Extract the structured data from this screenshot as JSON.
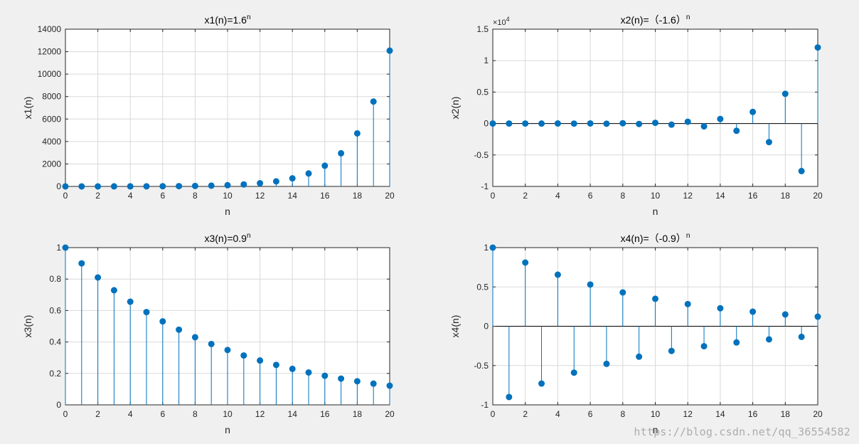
{
  "colors": {
    "figure_bg": "#f0f0f0",
    "axes_bg": "#ffffff",
    "stem": "#0072bd",
    "grid": "#d9d9d9",
    "axis": "#262626",
    "baseline": "#000000"
  },
  "watermark": "https://blog.csdn.net/qq_36554582",
  "chart_data": [
    {
      "type": "stem",
      "title": "x1(n)=1.6",
      "title_sup": "n",
      "xlabel": "n",
      "ylabel": "x1(n)",
      "xlim": [
        0,
        20
      ],
      "ylim": [
        0,
        14000
      ],
      "xticks": [
        "0",
        "2",
        "4",
        "6",
        "8",
        "10",
        "12",
        "14",
        "16",
        "18",
        "20"
      ],
      "yticks": [
        "0",
        "2000",
        "4000",
        "6000",
        "8000",
        "10000",
        "12000",
        "14000"
      ],
      "ytick_values": [
        0,
        2000,
        4000,
        6000,
        8000,
        10000,
        12000,
        14000
      ],
      "exponent_label": "",
      "grid": true,
      "baseline": false,
      "x": [
        0,
        1,
        2,
        3,
        4,
        5,
        6,
        7,
        8,
        9,
        10,
        11,
        12,
        13,
        14,
        15,
        16,
        17,
        18,
        19,
        20
      ],
      "values": [
        1,
        1.6,
        2.56,
        4.1,
        6.55,
        10.49,
        16.78,
        26.84,
        42.95,
        68.72,
        109.95,
        175.92,
        281.47,
        450.36,
        720.58,
        1152.92,
        1844.67,
        2951.48,
        4722.37,
        7555.79,
        12089.26
      ]
    },
    {
      "type": "stem",
      "title": "x2(n)=（-1.6）",
      "title_sup": "n",
      "xlabel": "n",
      "ylabel": "x2(n)",
      "xlim": [
        0,
        20
      ],
      "ylim": [
        -10000,
        15000
      ],
      "xticks": [
        "0",
        "2",
        "4",
        "6",
        "8",
        "10",
        "12",
        "14",
        "16",
        "18",
        "20"
      ],
      "yticks": [
        "-1",
        "-0.5",
        "0",
        "0.5",
        "1",
        "1.5"
      ],
      "ytick_values": [
        -10000,
        -5000,
        0,
        5000,
        10000,
        15000
      ],
      "exponent_label": "×10",
      "exponent_sup": "4",
      "grid": true,
      "baseline": true,
      "x": [
        0,
        1,
        2,
        3,
        4,
        5,
        6,
        7,
        8,
        9,
        10,
        11,
        12,
        13,
        14,
        15,
        16,
        17,
        18,
        19,
        20
      ],
      "values": [
        1,
        -1.6,
        2.56,
        -4.1,
        6.55,
        -10.49,
        16.78,
        -26.84,
        42.95,
        -68.72,
        109.95,
        -175.92,
        281.47,
        -450.36,
        720.58,
        -1152.92,
        1844.67,
        -2951.48,
        4722.37,
        -7555.79,
        12089.26
      ]
    },
    {
      "type": "stem",
      "title": "x3(n)=0.9",
      "title_sup": "n",
      "xlabel": "n",
      "ylabel": "x3(n)",
      "xlim": [
        0,
        20
      ],
      "ylim": [
        0,
        1
      ],
      "xticks": [
        "0",
        "2",
        "4",
        "6",
        "8",
        "10",
        "12",
        "14",
        "16",
        "18",
        "20"
      ],
      "yticks": [
        "0",
        "0.2",
        "0.4",
        "0.6",
        "0.8",
        "1"
      ],
      "ytick_values": [
        0,
        0.2,
        0.4,
        0.6,
        0.8,
        1
      ],
      "exponent_label": "",
      "grid": true,
      "baseline": false,
      "x": [
        0,
        1,
        2,
        3,
        4,
        5,
        6,
        7,
        8,
        9,
        10,
        11,
        12,
        13,
        14,
        15,
        16,
        17,
        18,
        19,
        20
      ],
      "values": [
        1,
        0.9,
        0.81,
        0.729,
        0.656,
        0.59,
        0.531,
        0.478,
        0.43,
        0.387,
        0.349,
        0.314,
        0.282,
        0.254,
        0.229,
        0.206,
        0.185,
        0.167,
        0.15,
        0.135,
        0.122
      ]
    },
    {
      "type": "stem",
      "title": "x4(n)=（-0.9）",
      "title_sup": "n",
      "xlabel": "n",
      "ylabel": "x4(n)",
      "xlim": [
        0,
        20
      ],
      "ylim": [
        -1,
        1
      ],
      "xticks": [
        "0",
        "2",
        "4",
        "6",
        "8",
        "10",
        "12",
        "14",
        "16",
        "18",
        "20"
      ],
      "yticks": [
        "-1",
        "-0.5",
        "0",
        "0.5",
        "1"
      ],
      "ytick_values": [
        -1,
        -0.5,
        0,
        0.5,
        1
      ],
      "exponent_label": "",
      "grid": true,
      "baseline": true,
      "x": [
        0,
        1,
        2,
        3,
        4,
        5,
        6,
        7,
        8,
        9,
        10,
        11,
        12,
        13,
        14,
        15,
        16,
        17,
        18,
        19,
        20
      ],
      "values": [
        1,
        -0.9,
        0.81,
        -0.729,
        0.656,
        -0.59,
        0.531,
        -0.478,
        0.43,
        -0.387,
        0.349,
        -0.314,
        0.282,
        -0.254,
        0.229,
        -0.206,
        0.185,
        -0.167,
        0.15,
        -0.135,
        0.122
      ]
    }
  ]
}
